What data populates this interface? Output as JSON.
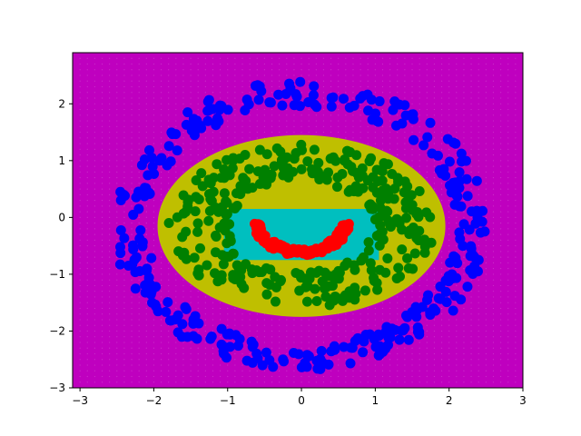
{
  "chart_data": {
    "type": "scatter",
    "title": "",
    "xlabel": "",
    "ylabel": "",
    "xlim": [
      -3.1,
      3.0
    ],
    "ylim": [
      -3.0,
      2.9
    ],
    "grid": false,
    "x_ticks": [
      -3,
      -2,
      -1,
      0,
      1,
      2,
      3
    ],
    "x_tick_labels": [
      "−3",
      "−2",
      "−1",
      "0",
      "1",
      "2",
      "3"
    ],
    "y_ticks": [
      -3,
      -2,
      -1,
      0,
      1,
      2
    ],
    "y_tick_labels": [
      "−3",
      "−2",
      "−1",
      "0",
      "1",
      "2"
    ],
    "decision_regions": {
      "background_color": "#bf00bf",
      "regions": [
        {
          "color": "#bfbf00",
          "shape": "ellipse",
          "center": [
            0.0,
            -0.15
          ],
          "radius_x": 1.95,
          "radius_y": 1.6
        },
        {
          "color": "#00bfbf",
          "shape": "rect",
          "x": [
            -1.05,
            1.05
          ],
          "y": [
            -0.75,
            0.15
          ]
        }
      ]
    },
    "series": [
      {
        "color": "#0000ff",
        "shape": "ring",
        "center": [
          0.0,
          -0.15
        ],
        "radius_x": [
          2.1,
          2.55
        ],
        "radius_y": [
          2.1,
          2.55
        ],
        "count": 330
      },
      {
        "color": "#008000",
        "shape": "ring",
        "center": [
          0.0,
          -0.15
        ],
        "radius_x": [
          0.95,
          1.8
        ],
        "radius_y": [
          0.8,
          1.45
        ],
        "count": 330
      },
      {
        "color": "#ff0000",
        "shape": "arc",
        "center": [
          0.0,
          0.0
        ],
        "radius": 0.62,
        "angle_range_deg": [
          190,
          350
        ],
        "count": 110
      }
    ],
    "colors": {
      "blue": "#0000ff",
      "green": "#008000",
      "red": "#ff0000",
      "yellow": "#bfbf00",
      "cyan": "#00bfbf",
      "magenta": "#bf00bf"
    }
  }
}
